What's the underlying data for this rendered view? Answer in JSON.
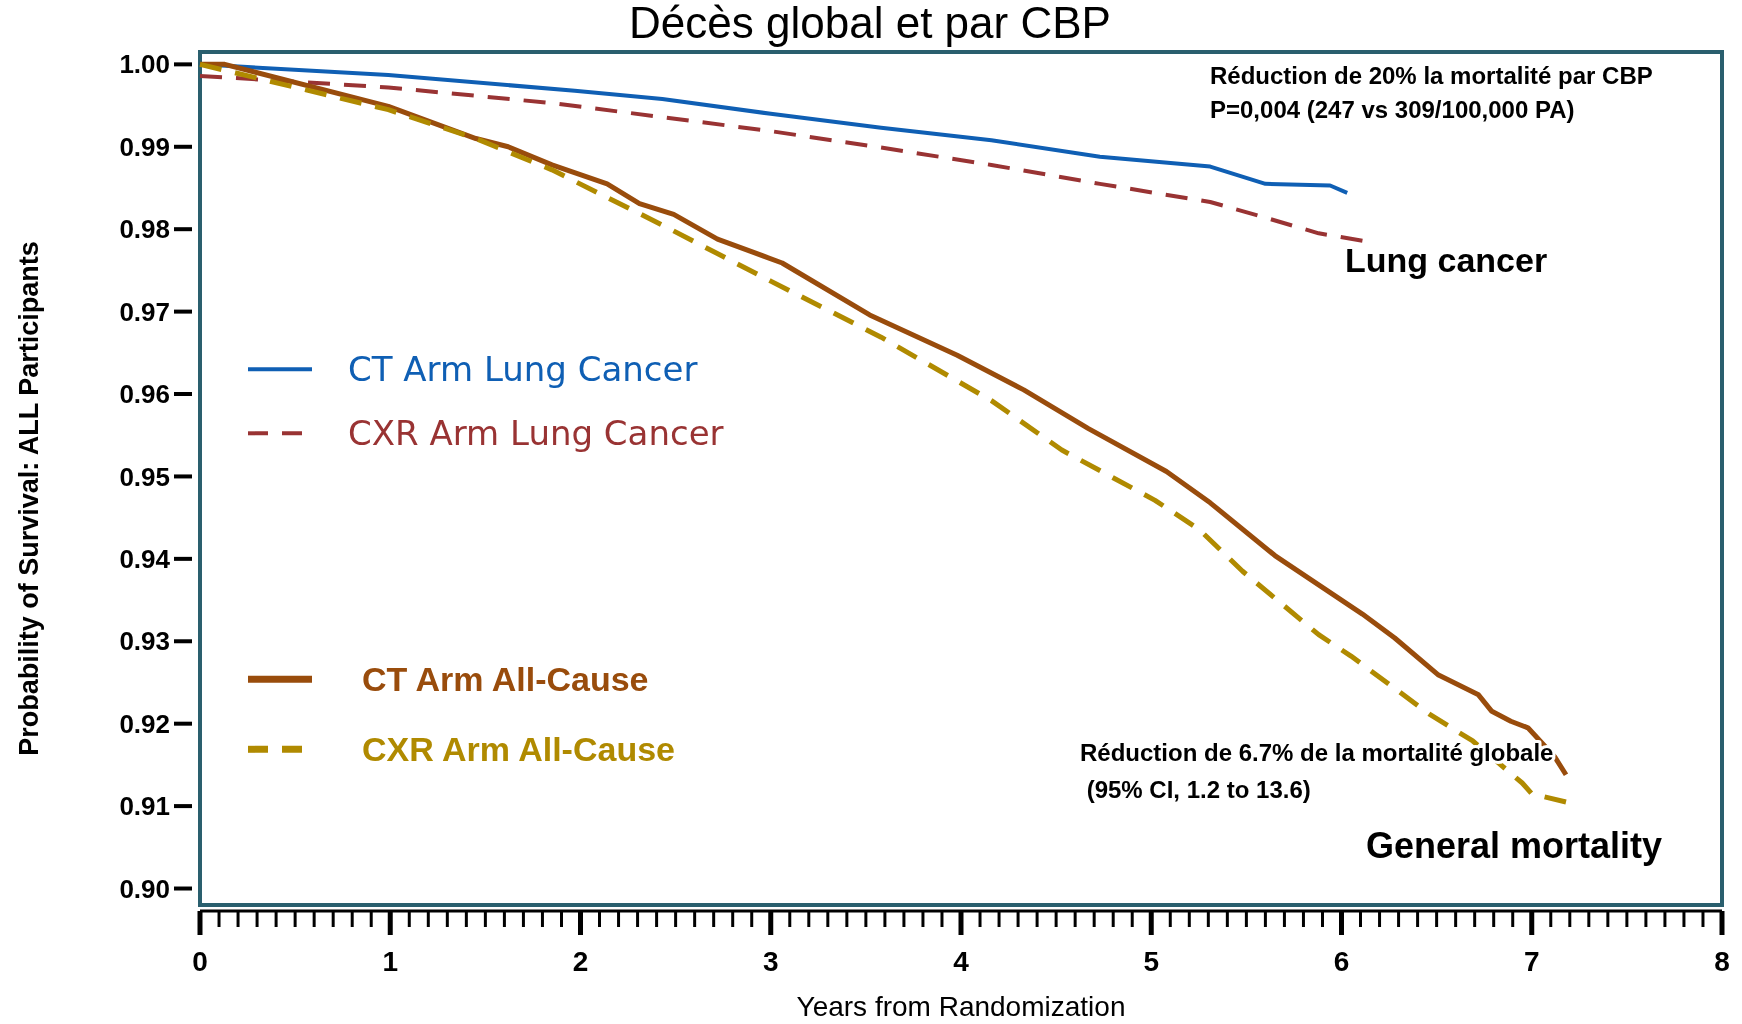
{
  "chart_data": {
    "type": "line",
    "title": "Décès global et par CBP",
    "xlabel": "Years from Randomization",
    "ylabel": "Probability of Survival:  ALL Participants",
    "xlim": [
      0,
      8
    ],
    "ylim": [
      0.898,
      1.0015
    ],
    "xticks": [
      0,
      {
        "value": 0.1,
        "label": null
      },
      {
        "value": 0.2,
        "label": null
      },
      {
        "value": 0.3,
        "label": null
      },
      {
        "value": 0.4,
        "label": null
      },
      {
        "value": 0.5,
        "label": null
      },
      {
        "value": 0.6,
        "label": null
      },
      {
        "value": 0.7,
        "label": null
      },
      {
        "value": 0.8,
        "label": null
      },
      {
        "value": 0.9,
        "label": null
      },
      1,
      {
        "value": 1.1,
        "label": null
      },
      {
        "value": 1.2,
        "label": null
      },
      {
        "value": 1.3,
        "label": null
      },
      {
        "value": 1.4,
        "label": null
      },
      {
        "value": 1.5,
        "label": null
      },
      {
        "value": 1.6,
        "label": null
      },
      {
        "value": 1.7,
        "label": null
      },
      {
        "value": 1.8,
        "label": null
      },
      {
        "value": 1.9,
        "label": null
      },
      2,
      {
        "value": 2.1,
        "label": null
      },
      {
        "value": 2.2,
        "label": null
      },
      {
        "value": 2.3,
        "label": null
      },
      {
        "value": 2.4,
        "label": null
      },
      {
        "value": 2.5,
        "label": null
      },
      {
        "value": 2.6,
        "label": null
      },
      {
        "value": 2.7,
        "label": null
      },
      {
        "value": 2.8,
        "label": null
      },
      {
        "value": 2.9,
        "label": null
      },
      3,
      {
        "value": 3.1,
        "label": null
      },
      {
        "value": 3.2,
        "label": null
      },
      {
        "value": 3.3,
        "label": null
      },
      {
        "value": 3.4,
        "label": null
      },
      {
        "value": 3.5,
        "label": null
      },
      {
        "value": 3.6,
        "label": null
      },
      {
        "value": 3.7,
        "label": null
      },
      {
        "value": 3.8,
        "label": null
      },
      {
        "value": 3.9,
        "label": null
      },
      4,
      {
        "value": 4.1,
        "label": null
      },
      {
        "value": 4.2,
        "label": null
      },
      {
        "value": 4.3,
        "label": null
      },
      {
        "value": 4.4,
        "label": null
      },
      {
        "value": 4.5,
        "label": null
      },
      {
        "value": 4.6,
        "label": null
      },
      {
        "value": 4.7,
        "label": null
      },
      {
        "value": 4.8,
        "label": null
      },
      {
        "value": 4.9,
        "label": null
      },
      5,
      {
        "value": 5.1,
        "label": null
      },
      {
        "value": 5.2,
        "label": null
      },
      {
        "value": 5.3,
        "label": null
      },
      {
        "value": 5.4,
        "label": null
      },
      {
        "value": 5.5,
        "label": null
      },
      {
        "value": 5.6,
        "label": null
      },
      {
        "value": 5.7,
        "label": null
      },
      {
        "value": 5.8,
        "label": null
      },
      {
        "value": 5.9,
        "label": null
      },
      6,
      {
        "value": 6.1,
        "label": null
      },
      {
        "value": 6.2,
        "label": null
      },
      {
        "value": 6.3,
        "label": null
      },
      {
        "value": 6.4,
        "label": null
      },
      {
        "value": 6.5,
        "label": null
      },
      {
        "value": 6.6,
        "label": null
      },
      {
        "value": 6.7,
        "label": null
      },
      {
        "value": 6.8,
        "label": null
      },
      {
        "value": 6.9,
        "label": null
      },
      7,
      {
        "value": 7.1,
        "label": null
      },
      {
        "value": 7.2,
        "label": null
      },
      {
        "value": 7.3,
        "label": null
      },
      {
        "value": 7.4,
        "label": null
      },
      {
        "value": 7.5,
        "label": null
      },
      {
        "value": 7.6,
        "label": null
      },
      {
        "value": 7.7,
        "label": null
      },
      {
        "value": 7.8,
        "label": null
      },
      {
        "value": 7.9,
        "label": null
      },
      8
    ],
    "yticks": [
      {
        "value": 0.9,
        "label": "0.90"
      },
      0.91,
      0.92,
      0.93,
      0.94,
      0.95,
      0.96,
      0.97,
      0.98,
      0.99,
      {
        "value": 1.0,
        "label": "1.00"
      }
    ],
    "grid": false,
    "legend": "left",
    "marker": "none",
    "series": [
      {
        "name": "CT Arm Lung Cancer",
        "color": "#0f5fb4",
        "line_style": "solid",
        "x": [
          0,
          0.99,
          1.97,
          2.43,
          3.0,
          3.58,
          4.16,
          4.73,
          5.31,
          5.6,
          5.94,
          6.03
        ],
        "values": [
          1.0,
          0.9987,
          0.9968,
          0.9958,
          0.994,
          0.9923,
          0.9908,
          0.9888,
          0.9876,
          0.9855,
          0.9853,
          0.9844
        ]
      },
      {
        "name": "CXR Arm Lung Cancer",
        "color": "#993333",
        "line_style": "dashed",
        "x": [
          0,
          0.99,
          1.85,
          2.43,
          3.0,
          3.58,
          4.16,
          4.73,
          5.31,
          5.6,
          5.88,
          6.11
        ],
        "values": [
          0.9986,
          0.9972,
          0.9953,
          0.9936,
          0.9919,
          0.9899,
          0.9878,
          0.9855,
          0.9833,
          0.9814,
          0.9795,
          0.9786
        ]
      },
      {
        "name": "CT Arm All-Cause",
        "color": "#994c0c",
        "line_style": "solid",
        "x": [
          0,
          0.13,
          0.99,
          1.45,
          1.62,
          1.85,
          2.14,
          2.31,
          2.49,
          2.72,
          3.06,
          3.52,
          3.98,
          4.33,
          4.67,
          5.08,
          5.31,
          5.65,
          6.11,
          6.28,
          6.51,
          6.72,
          6.79,
          6.89,
          6.98,
          7.12,
          7.18
        ],
        "values": [
          1.0,
          1.0,
          0.9949,
          0.991,
          0.99,
          0.9878,
          0.9855,
          0.9831,
          0.9818,
          0.9788,
          0.9759,
          0.9696,
          0.9647,
          0.9605,
          0.9558,
          0.9506,
          0.9468,
          0.9404,
          0.9333,
          0.9304,
          0.9259,
          0.9235,
          0.9215,
          0.9203,
          0.9195,
          0.916,
          0.9138
        ]
      },
      {
        "name": "CXR Arm All-Cause",
        "color": "#b08a00",
        "line_style": "dashed",
        "x": [
          0,
          0.99,
          1.45,
          1.85,
          2.43,
          3.0,
          3.58,
          4.16,
          4.53,
          5.02,
          5.25,
          5.48,
          5.88,
          6.05,
          6.46,
          6.69,
          6.95,
          7.0,
          7.18
        ],
        "values": [
          1.0,
          0.9945,
          0.991,
          0.9872,
          0.9805,
          0.9737,
          0.9669,
          0.9592,
          0.9532,
          0.9471,
          0.9436,
          0.9385,
          0.9308,
          0.9282,
          0.9212,
          0.9179,
          0.9128,
          0.9115,
          0.9105
        ]
      }
    ],
    "annotations": [
      "Réduction de 20% la mortalité par CBP",
      "P=0,004 (247 vs 309/100,000 PA)",
      "Lung cancer",
      "Réduction de 6.7% de la mortalité globale",
      " (95% CI, 1.2 to 13.6)",
      "General mortality"
    ]
  }
}
